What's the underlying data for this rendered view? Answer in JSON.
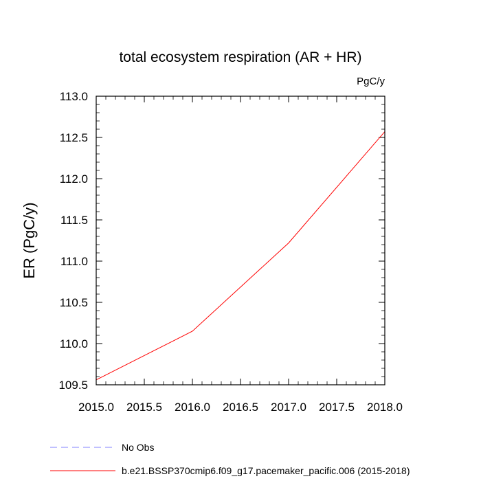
{
  "chart_data": {
    "type": "line",
    "title": "total ecosystem respiration (AR + HR)",
    "units_label": "PgC/y",
    "xlabel": "",
    "ylabel": "ER  (PgC/y)",
    "xlim": [
      2015.0,
      2018.0
    ],
    "ylim": [
      109.5,
      113.0
    ],
    "x_ticks": [
      2015.0,
      2015.5,
      2016.0,
      2016.5,
      2017.0,
      2017.5,
      2018.0
    ],
    "x_tick_labels": [
      "2015.0",
      "2015.5",
      "2016.0",
      "2016.5",
      "2017.0",
      "2017.5",
      "2018.0"
    ],
    "y_ticks": [
      109.5,
      110.0,
      110.5,
      111.0,
      111.5,
      112.0,
      112.5,
      113.0
    ],
    "y_tick_labels": [
      "109.5",
      "110.0",
      "110.5",
      "111.0",
      "111.5",
      "112.0",
      "112.5",
      "113.0"
    ],
    "grid": false,
    "series": [
      {
        "name": "b.e21.BSSP370cmip6.f09_g17.pacemaker_pacific.006 (2015-2018)",
        "color": "#ff0000",
        "dash": "solid",
        "x": [
          2015.0,
          2016.0,
          2017.0,
          2018.0
        ],
        "y": [
          109.56,
          110.15,
          111.22,
          112.57
        ]
      }
    ],
    "legend": {
      "placement": "bottom-left",
      "entries": [
        {
          "label": "No Obs",
          "color": "#8080ff",
          "dash": "dashed"
        },
        {
          "label": "b.e21.BSSP370cmip6.f09_g17.pacemaker_pacific.006 (2015-2018)",
          "color": "#ff0000",
          "dash": "solid"
        }
      ]
    }
  }
}
